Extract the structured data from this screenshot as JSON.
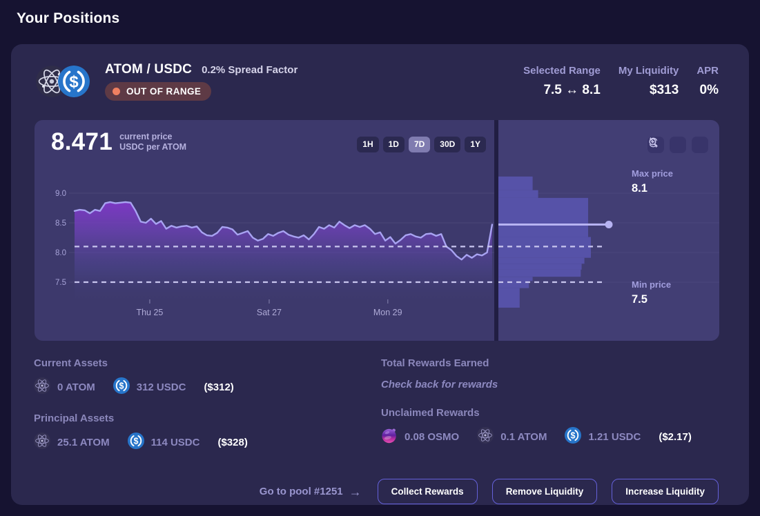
{
  "page": {
    "title": "Your Positions"
  },
  "position": {
    "pair": "ATOM / USDC",
    "spread_factor": "0.2% Spread Factor",
    "status": "OUT OF RANGE",
    "stats": [
      {
        "label": "Selected Range",
        "value": "7.5 ↔ 8.1"
      },
      {
        "label": "My Liquidity",
        "value": "$313"
      },
      {
        "label": "APR",
        "value": "0%"
      }
    ]
  },
  "chart": {
    "current_price": "8.471",
    "caption_line1": "current price",
    "caption_line2": "USDC per ATOM",
    "timeframes": [
      "1H",
      "1D",
      "7D",
      "30D",
      "1Y"
    ],
    "selected_timeframe": "7D",
    "max_price_label": "Max price",
    "max_price_value": "8.1",
    "min_price_label": "Min price",
    "min_price_value": "7.5"
  },
  "chart_data": {
    "type": "area",
    "title": "ATOM/USDC price, 7 day window",
    "y_unit": "USDC per ATOM",
    "current_price": 8.471,
    "selected_range": {
      "min": 7.5,
      "max": 8.1
    },
    "y_ticks": [
      9.0,
      8.5,
      8.0,
      7.5
    ],
    "x_ticks": [
      {
        "label": "Thu 25",
        "pos": 0.18
      },
      {
        "label": "Sat 27",
        "pos": 0.466
      },
      {
        "label": "Mon 29",
        "pos": 0.75
      }
    ],
    "price_series": [
      8.7,
      8.72,
      8.71,
      8.66,
      8.72,
      8.7,
      8.83,
      8.85,
      8.83,
      8.84,
      8.85,
      8.84,
      8.7,
      8.52,
      8.5,
      8.57,
      8.48,
      8.53,
      8.4,
      8.45,
      8.42,
      8.44,
      8.45,
      8.42,
      8.44,
      8.34,
      8.29,
      8.28,
      8.33,
      8.43,
      8.42,
      8.39,
      8.3,
      8.33,
      8.36,
      8.25,
      8.2,
      8.23,
      8.31,
      8.28,
      8.33,
      8.36,
      8.3,
      8.27,
      8.25,
      8.29,
      8.22,
      8.31,
      8.43,
      8.4,
      8.46,
      8.42,
      8.52,
      8.46,
      8.41,
      8.46,
      8.43,
      8.46,
      8.4,
      8.31,
      8.34,
      8.2,
      8.26,
      8.15,
      8.21,
      8.29,
      8.31,
      8.27,
      8.25,
      8.31,
      8.32,
      8.28,
      8.31,
      8.1,
      8.04,
      7.94,
      7.88,
      7.96,
      7.91,
      7.97,
      7.95,
      8.0,
      8.471
    ],
    "liquidity_depth": {
      "type": "horizontal-bar",
      "bars": [
        {
          "price_top": 9.28,
          "price_bottom": 9.05,
          "depth": 0.37
        },
        {
          "price_top": 9.05,
          "price_bottom": 8.92,
          "depth": 0.43
        },
        {
          "price_top": 8.92,
          "price_bottom": 8.26,
          "depth": 0.97
        },
        {
          "price_top": 8.26,
          "price_bottom": 7.91,
          "depth": 1.0
        },
        {
          "price_top": 7.91,
          "price_bottom": 7.81,
          "depth": 0.93
        },
        {
          "price_top": 7.81,
          "price_bottom": 7.71,
          "depth": 0.9
        },
        {
          "price_top": 7.71,
          "price_bottom": 7.59,
          "depth": 0.89
        },
        {
          "price_top": 7.59,
          "price_bottom": 7.52,
          "depth": 0.37
        },
        {
          "price_top": 7.52,
          "price_bottom": 7.4,
          "depth": 0.33
        },
        {
          "price_top": 7.4,
          "price_bottom": 7.07,
          "depth": 0.23
        }
      ]
    }
  },
  "assets": {
    "current": {
      "title": "Current Assets",
      "items": [
        {
          "icon": "atom",
          "amount": "0 ATOM"
        },
        {
          "icon": "usdc",
          "amount": "312 USDC"
        }
      ],
      "total": "($312)"
    },
    "principal": {
      "title": "Principal Assets",
      "items": [
        {
          "icon": "atom",
          "amount": "25.1 ATOM"
        },
        {
          "icon": "usdc",
          "amount": "114 USDC"
        }
      ],
      "total": "($328)"
    }
  },
  "rewards": {
    "total": {
      "title": "Total Rewards Earned",
      "empty_text": "Check back for rewards"
    },
    "unclaimed": {
      "title": "Unclaimed Rewards",
      "items": [
        {
          "icon": "osmo",
          "amount": "0.08 OSMO"
        },
        {
          "icon": "atom",
          "amount": "0.1 ATOM"
        },
        {
          "icon": "usdc",
          "amount": "1.21 USDC"
        }
      ],
      "total": "($2.17)"
    }
  },
  "footer": {
    "pool_link": "Go to pool #1251",
    "arrow": "→",
    "buttons": [
      "Collect Rewards",
      "Remove Liquidity",
      "Increase Liquidity"
    ]
  },
  "colors": {
    "accent_purple": "#6561da",
    "out_of_range_dot": "#ef8061",
    "out_of_range_bg": "#5e3a45",
    "usdc_blue": "#2775CA",
    "chart_line": "#a8a3f2",
    "depth_bar": "#5652a8",
    "panel_bg": "#3d396c",
    "card_bg": "#2b284e",
    "page_bg": "#161331"
  }
}
